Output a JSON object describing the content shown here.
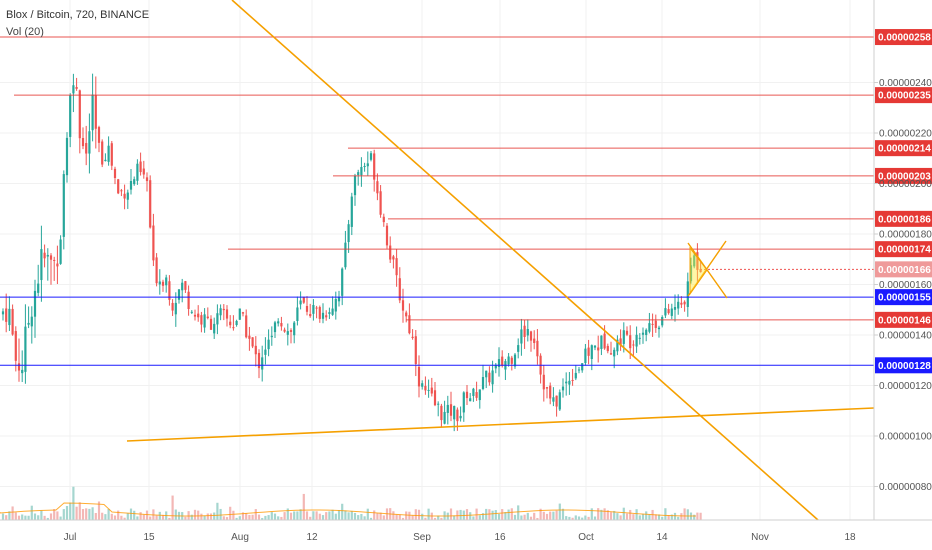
{
  "header": {
    "title": "Blox / Bitcoin, 720, BINANCE",
    "volume_label": "Vol (20)"
  },
  "chart_data": {
    "type": "candlestick",
    "title": "Blox / Bitcoin, 720, BINANCE",
    "indicator": "Vol (20)",
    "ylim": [
      6.5e-07,
      2.88e-06
    ],
    "y_ticks": [
      "0.00000240",
      "0.00000220",
      "0.00000200",
      "0.00000180",
      "0.00000160",
      "0.00000140",
      "0.00000120",
      "0.00000100",
      "0.00000080"
    ],
    "x_ticks": [
      "Jul",
      "15",
      "Aug",
      "12",
      "Sep",
      "16",
      "Oct",
      "14",
      "Nov",
      "18"
    ],
    "resistance_levels": [
      {
        "value": "0.00000258",
        "color": "#e53935"
      },
      {
        "value": "0.00000235",
        "color": "#e53935"
      },
      {
        "value": "0.00000214",
        "color": "#e53935"
      },
      {
        "value": "0.00000203",
        "color": "#e53935"
      },
      {
        "value": "0.00000186",
        "color": "#e53935"
      },
      {
        "value": "0.00000174",
        "color": "#e53935"
      },
      {
        "value": "0.00000146",
        "color": "#e53935"
      }
    ],
    "support_levels": [
      {
        "value": "0.00000155",
        "color": "#1a1aff"
      },
      {
        "value": "0.00000128",
        "color": "#1a1aff"
      }
    ],
    "last_price": {
      "value": "0.00000166",
      "color": "#ef9a9a"
    },
    "colors": {
      "up": "#26a69a",
      "down": "#ef5350",
      "trendline": "#f5a000",
      "ma": "#ff9800"
    }
  }
}
